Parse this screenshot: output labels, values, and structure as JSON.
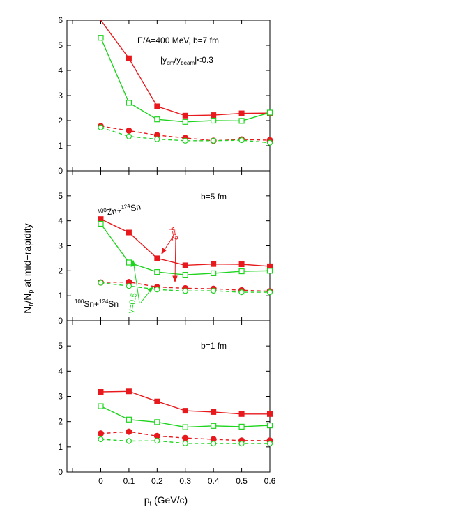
{
  "chart_data": {
    "type": "line",
    "ylabel": "N_n/N_p at mid-rapidity",
    "xlabel": "p_t (GeV/c)",
    "x": [
      0,
      0.1,
      0.2,
      0.3,
      0.4,
      0.5,
      0.6
    ],
    "xlim": [
      -0.12,
      0.6
    ],
    "xticks": [
      "0",
      "0.1",
      "0.2",
      "0.3",
      "0.4",
      "0.5",
      "0.6"
    ],
    "ylim": [
      0,
      6
    ],
    "yticks_top": [
      "0",
      "1",
      "2",
      "3",
      "4",
      "5",
      "6"
    ],
    "yticks_lower": [
      "0",
      "1",
      "2",
      "3",
      "4",
      "5"
    ],
    "colors": {
      "stiff": "#e8191c",
      "soft": "#1ed41e"
    },
    "panels": [
      {
        "annotations": [
          "E/A=400 MeV, b=7 fm",
          "|y_cm/y_beam|<0.3"
        ],
        "series": [
          {
            "system": "100Zn+124Sn",
            "gamma": "2",
            "marker": "filled-square",
            "linestyle": "solid",
            "values": [
              6.1,
              4.48,
              2.57,
              2.2,
              2.22,
              2.29,
              2.3
            ]
          },
          {
            "system": "100Zn+124Sn",
            "gamma": "0.5",
            "marker": "open-square",
            "linestyle": "solid",
            "values": [
              5.3,
              2.71,
              2.05,
              1.95,
              2.0,
              1.99,
              2.32
            ]
          },
          {
            "system": "100Sn+124Sn",
            "gamma": "2",
            "marker": "filled-circle",
            "linestyle": "dashed",
            "values": [
              1.78,
              1.6,
              1.42,
              1.31,
              1.2,
              1.25,
              1.22
            ]
          },
          {
            "system": "100Sn+124Sn",
            "gamma": "0.5",
            "marker": "open-circle",
            "linestyle": "dashed",
            "values": [
              1.73,
              1.37,
              1.26,
              1.2,
              1.2,
              1.22,
              1.12
            ]
          }
        ]
      },
      {
        "annotations": [
          "b=5 fm",
          "100Zn+124Sn",
          "100Sn+124Sn",
          "γ=2",
          "γ=0.5"
        ],
        "series": [
          {
            "system": "100Zn+124Sn",
            "gamma": "2",
            "marker": "filled-square",
            "linestyle": "solid",
            "values": [
              4.07,
              3.53,
              2.5,
              2.22,
              2.27,
              2.26,
              2.18
            ]
          },
          {
            "system": "100Zn+124Sn",
            "gamma": "0.5",
            "marker": "open-square",
            "linestyle": "solid",
            "values": [
              3.88,
              2.33,
              1.95,
              1.84,
              1.9,
              1.98,
              2.0
            ]
          },
          {
            "system": "100Sn+124Sn",
            "gamma": "2",
            "marker": "filled-circle",
            "linestyle": "dashed",
            "values": [
              1.53,
              1.55,
              1.35,
              1.3,
              1.28,
              1.22,
              1.18
            ]
          },
          {
            "system": "100Sn+124Sn",
            "gamma": "0.5",
            "marker": "open-circle",
            "linestyle": "dashed",
            "values": [
              1.52,
              1.39,
              1.25,
              1.19,
              1.2,
              1.14,
              1.14
            ]
          }
        ]
      },
      {
        "annotations": [
          "b=1 fm"
        ],
        "series": [
          {
            "system": "100Zn+124Sn",
            "gamma": "2",
            "marker": "filled-square",
            "linestyle": "solid",
            "values": [
              3.18,
              3.2,
              2.8,
              2.43,
              2.38,
              2.3,
              2.3
            ]
          },
          {
            "system": "100Zn+124Sn",
            "gamma": "0.5",
            "marker": "open-square",
            "linestyle": "solid",
            "values": [
              2.61,
              2.08,
              1.98,
              1.78,
              1.83,
              1.8,
              1.85
            ]
          },
          {
            "system": "100Sn+124Sn",
            "gamma": "2",
            "marker": "filled-circle",
            "linestyle": "dashed",
            "values": [
              1.53,
              1.6,
              1.43,
              1.35,
              1.3,
              1.25,
              1.25
            ]
          },
          {
            "system": "100Sn+124Sn",
            "gamma": "0.5",
            "marker": "open-circle",
            "linestyle": "dashed",
            "values": [
              1.3,
              1.23,
              1.24,
              1.14,
              1.13,
              1.13,
              1.13
            ]
          }
        ]
      }
    ]
  }
}
